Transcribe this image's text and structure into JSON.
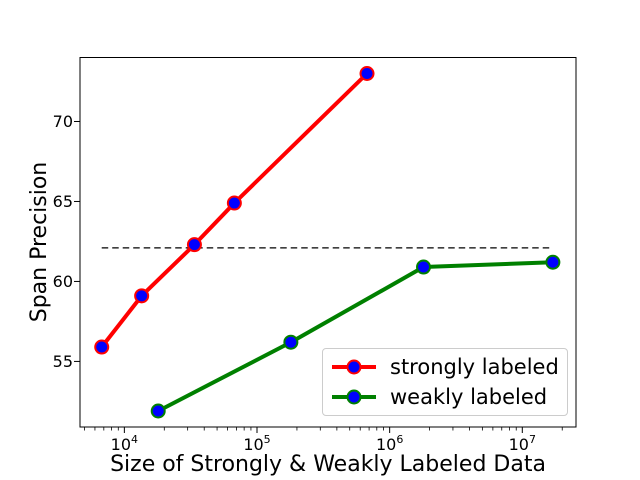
{
  "figure": {
    "background": "#ffffff",
    "frame_color": "#000000"
  },
  "chart_data": {
    "type": "line",
    "title": "",
    "xlabel": "Size of Strongly & Weakly Labeled Data",
    "ylabel": "Span Precision",
    "x_scale": "log",
    "y_scale": "linear",
    "xlim": [
      4630,
      25400000
    ],
    "ylim": [
      50.9,
      74.0
    ],
    "x_ticks": [
      10000,
      100000,
      1000000,
      10000000
    ],
    "y_ticks": [
      55,
      60,
      65,
      70
    ],
    "grid": false,
    "legend_position": "lower right",
    "series": [
      {
        "name": "strongly labeled",
        "line_color": "#ff0000",
        "marker": "circle",
        "marker_fill": "#0000ff",
        "x": [
          6750,
          13500,
          33750,
          67500,
          675000
        ],
        "y": [
          55.9,
          59.1,
          62.3,
          64.9,
          73.0
        ]
      },
      {
        "name": "weakly labeled",
        "line_color": "#008000",
        "marker": "circle",
        "marker_fill": "#0000ff",
        "x": [
          18000,
          180000,
          1800000,
          17000000
        ],
        "y": [
          51.9,
          56.2,
          60.9,
          61.2
        ]
      }
    ],
    "baseline": {
      "y": 62.1,
      "x_start": 6750,
      "x_end": 17000000,
      "line_style": "dashed",
      "color": "#000000"
    }
  }
}
